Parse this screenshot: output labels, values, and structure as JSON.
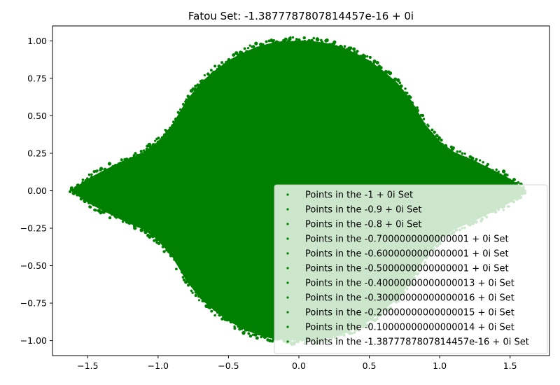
{
  "chart_data": {
    "type": "scatter",
    "title": "Fatou Set: -1.3877787807814457e-16 + 0i",
    "xlabel": "",
    "ylabel": "",
    "xlim": [
      -1.75,
      1.78
    ],
    "ylim": [
      -1.1,
      1.1
    ],
    "x_ticks": [
      {
        "value": -1.5,
        "label": "−1.5"
      },
      {
        "value": -1.0,
        "label": "−1.0"
      },
      {
        "value": -0.5,
        "label": "−0.5"
      },
      {
        "value": 0.0,
        "label": "0.0"
      },
      {
        "value": 0.5,
        "label": "0.5"
      },
      {
        "value": 1.0,
        "label": "1.0"
      },
      {
        "value": 1.5,
        "label": "1.5"
      }
    ],
    "y_ticks": [
      {
        "value": 1.0,
        "label": "1.00"
      },
      {
        "value": 0.75,
        "label": "0.75"
      },
      {
        "value": 0.5,
        "label": "0.50"
      },
      {
        "value": 0.25,
        "label": "0.25"
      },
      {
        "value": 0.0,
        "label": "0.00"
      },
      {
        "value": -0.25,
        "label": "−0.25"
      },
      {
        "value": -0.5,
        "label": "−0.50"
      },
      {
        "value": -0.75,
        "label": "−0.75"
      },
      {
        "value": -1.0,
        "label": "−1.00"
      }
    ],
    "grid": false,
    "legend_position": "lower-right",
    "marker_color": "#008000",
    "series": [
      {
        "name": "Points in the -1 + 0i Set"
      },
      {
        "name": "Points in the -0.9 + 0i Set"
      },
      {
        "name": "Points in the -0.8 + 0i Set"
      },
      {
        "name": "Points in the -0.7000000000000001 + 0i Set"
      },
      {
        "name": "Points in the -0.6000000000000001 + 0i Set"
      },
      {
        "name": "Points in the -0.5000000000000001 + 0i Set"
      },
      {
        "name": "Points in the -0.40000000000000013 + 0i Set"
      },
      {
        "name": "Points in the -0.30000000000000016 + 0i Set"
      },
      {
        "name": "Points in the -0.20000000000000015 + 0i Set"
      },
      {
        "name": "Points in the -0.10000000000000014 + 0i Set"
      },
      {
        "name": "Points in the -1.3877787807814457e-16 + 0i Set"
      }
    ],
    "filled_region_outline": [
      [
        -1.62,
        0.0
      ],
      [
        -1.5,
        0.08
      ],
      [
        -1.4,
        0.13
      ],
      [
        -1.25,
        0.2
      ],
      [
        -1.1,
        0.26
      ],
      [
        -1.0,
        0.33
      ],
      [
        -0.9,
        0.44
      ],
      [
        -0.8,
        0.6
      ],
      [
        -0.7,
        0.72
      ],
      [
        -0.6,
        0.8
      ],
      [
        -0.5,
        0.87
      ],
      [
        -0.4,
        0.92
      ],
      [
        -0.3,
        0.96
      ],
      [
        -0.2,
        0.985
      ],
      [
        -0.1,
        0.998
      ],
      [
        0.0,
        1.0
      ],
      [
        0.1,
        0.998
      ],
      [
        0.2,
        0.985
      ],
      [
        0.3,
        0.96
      ],
      [
        0.4,
        0.92
      ],
      [
        0.5,
        0.87
      ],
      [
        0.6,
        0.8
      ],
      [
        0.7,
        0.72
      ],
      [
        0.8,
        0.6
      ],
      [
        0.9,
        0.44
      ],
      [
        1.0,
        0.33
      ],
      [
        1.1,
        0.26
      ],
      [
        1.25,
        0.2
      ],
      [
        1.4,
        0.13
      ],
      [
        1.5,
        0.08
      ],
      [
        1.62,
        0.0
      ]
    ]
  }
}
